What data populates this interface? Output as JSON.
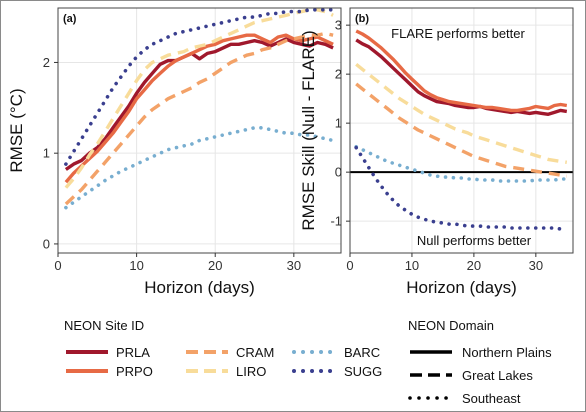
{
  "chart_data": [
    {
      "panel_label": "(a)",
      "type": "line",
      "xlabel": "Horizon (days)",
      "ylabel": "RMSE (°C)",
      "xlim": [
        0,
        36
      ],
      "ylim": [
        -0.1,
        2.6
      ],
      "xticks": [
        0,
        10,
        20,
        30
      ],
      "yticks": [
        0,
        1,
        2
      ],
      "grid": true,
      "series": [
        {
          "name": "PRLA",
          "color": "#a0182c",
          "dash": "solid",
          "x": [
            1,
            2,
            3,
            4,
            5,
            6,
            7,
            8,
            9,
            10,
            11,
            12,
            13,
            14,
            15,
            16,
            17,
            18,
            19,
            20,
            21,
            22,
            23,
            24,
            25,
            26,
            27,
            28,
            29,
            30,
            31,
            32,
            33,
            34,
            35
          ],
          "y": [
            0.82,
            0.88,
            0.92,
            1.0,
            1.06,
            1.16,
            1.28,
            1.4,
            1.52,
            1.66,
            1.78,
            1.88,
            1.98,
            2.02,
            2.02,
            2.06,
            2.1,
            2.04,
            2.1,
            2.12,
            2.16,
            2.2,
            2.2,
            2.22,
            2.24,
            2.22,
            2.18,
            2.22,
            2.26,
            2.22,
            2.2,
            2.18,
            2.22,
            2.2,
            2.16
          ]
        },
        {
          "name": "PRPO",
          "color": "#e76a45",
          "dash": "solid",
          "x": [
            1,
            2,
            3,
            4,
            5,
            6,
            7,
            8,
            9,
            10,
            11,
            12,
            13,
            14,
            15,
            16,
            17,
            18,
            19,
            20,
            21,
            22,
            23,
            24,
            25,
            26,
            27,
            28,
            29,
            30,
            31,
            32,
            33,
            34,
            35
          ],
          "y": [
            0.68,
            0.78,
            0.86,
            0.94,
            1.02,
            1.12,
            1.22,
            1.34,
            1.46,
            1.6,
            1.7,
            1.8,
            1.88,
            1.96,
            2.02,
            2.06,
            2.1,
            2.14,
            2.18,
            2.2,
            2.24,
            2.26,
            2.28,
            2.3,
            2.3,
            2.26,
            2.22,
            2.28,
            2.3,
            2.26,
            2.24,
            2.26,
            2.28,
            2.24,
            2.2
          ]
        },
        {
          "name": "CRAM",
          "color": "#f3a268",
          "dash": "dashed",
          "x": [
            1,
            2,
            3,
            4,
            5,
            6,
            7,
            8,
            9,
            10,
            11,
            12,
            13,
            14,
            15,
            16,
            17,
            18,
            19,
            20,
            21,
            22,
            23,
            24,
            25,
            26,
            27,
            28,
            29,
            30,
            31,
            32,
            33,
            34,
            35
          ],
          "y": [
            0.44,
            0.52,
            0.6,
            0.7,
            0.8,
            0.9,
            1.0,
            1.1,
            1.2,
            1.3,
            1.4,
            1.48,
            1.54,
            1.6,
            1.64,
            1.68,
            1.72,
            1.78,
            1.82,
            1.88,
            1.94,
            2.0,
            2.04,
            2.08,
            2.1,
            2.14,
            2.16,
            2.2,
            2.24,
            2.26,
            2.28,
            2.3,
            2.3,
            2.32,
            2.3
          ]
        },
        {
          "name": "LIRO",
          "color": "#f8dc9a",
          "dash": "dashed",
          "x": [
            1,
            2,
            3,
            4,
            5,
            6,
            7,
            8,
            9,
            10,
            11,
            12,
            13,
            14,
            15,
            16,
            17,
            18,
            19,
            20,
            21,
            22,
            23,
            24,
            25,
            26,
            27,
            28,
            29,
            30,
            31,
            32,
            33,
            34,
            35
          ],
          "y": [
            0.62,
            0.72,
            0.84,
            0.98,
            1.1,
            1.24,
            1.38,
            1.52,
            1.66,
            1.8,
            1.92,
            2.0,
            2.04,
            2.08,
            2.1,
            2.12,
            2.16,
            2.18,
            2.2,
            2.24,
            2.28,
            2.32,
            2.36,
            2.4,
            2.44,
            2.46,
            2.48,
            2.5,
            2.52,
            2.54,
            2.56,
            2.58,
            2.58,
            2.56,
            2.52
          ]
        },
        {
          "name": "BARC",
          "color": "#78aed0",
          "dash": "dotted",
          "x": [
            1,
            2,
            3,
            4,
            5,
            6,
            7,
            8,
            9,
            10,
            11,
            12,
            13,
            14,
            15,
            16,
            17,
            18,
            19,
            20,
            21,
            22,
            23,
            24,
            25,
            26,
            27,
            28,
            29,
            30,
            31,
            32,
            33,
            34,
            35
          ],
          "y": [
            0.4,
            0.46,
            0.52,
            0.58,
            0.64,
            0.7,
            0.75,
            0.8,
            0.84,
            0.88,
            0.92,
            0.96,
            1.0,
            1.04,
            1.06,
            1.08,
            1.1,
            1.14,
            1.16,
            1.18,
            1.2,
            1.22,
            1.24,
            1.26,
            1.28,
            1.28,
            1.26,
            1.24,
            1.22,
            1.22,
            1.2,
            1.2,
            1.18,
            1.16,
            1.14
          ]
        },
        {
          "name": "SUGG",
          "color": "#3a3f8f",
          "dash": "dotted",
          "x": [
            1,
            2,
            3,
            4,
            5,
            6,
            7,
            8,
            9,
            10,
            11,
            12,
            13,
            14,
            15,
            16,
            17,
            18,
            19,
            20,
            21,
            22,
            23,
            24,
            25,
            26,
            27,
            28,
            29,
            30,
            31,
            32,
            33,
            34,
            35
          ],
          "y": [
            0.88,
            1.02,
            1.16,
            1.3,
            1.44,
            1.58,
            1.72,
            1.84,
            1.96,
            2.06,
            2.14,
            2.2,
            2.24,
            2.28,
            2.32,
            2.34,
            2.36,
            2.38,
            2.4,
            2.42,
            2.44,
            2.46,
            2.48,
            2.5,
            2.5,
            2.52,
            2.54,
            2.54,
            2.56,
            2.56,
            2.56,
            2.58,
            2.58,
            2.58,
            2.58
          ]
        }
      ]
    },
    {
      "panel_label": "(b)",
      "type": "line",
      "xlabel": "Horizon (days)",
      "ylabel": "RMSE Skill (Null - FLARE)",
      "xlim": [
        0,
        36
      ],
      "ylim": [
        -1.65,
        3.35
      ],
      "xticks": [
        0,
        10,
        20,
        30
      ],
      "yticks": [
        -1,
        0,
        1,
        2,
        3
      ],
      "grid": true,
      "zero_line": true,
      "annotations": [
        "FLARE performs better",
        "Null performs better"
      ],
      "series": [
        {
          "name": "PRLA",
          "color": "#a0182c",
          "dash": "solid",
          "x": [
            1,
            2,
            3,
            4,
            5,
            6,
            7,
            8,
            9,
            10,
            11,
            12,
            13,
            14,
            15,
            16,
            17,
            18,
            19,
            20,
            21,
            22,
            23,
            24,
            25,
            26,
            27,
            28,
            29,
            30,
            31,
            32,
            33,
            34,
            35
          ],
          "y": [
            2.7,
            2.62,
            2.56,
            2.46,
            2.36,
            2.24,
            2.12,
            2.0,
            1.88,
            1.76,
            1.64,
            1.56,
            1.5,
            1.44,
            1.42,
            1.4,
            1.36,
            1.34,
            1.32,
            1.32,
            1.34,
            1.3,
            1.28,
            1.26,
            1.24,
            1.22,
            1.24,
            1.22,
            1.2,
            1.22,
            1.2,
            1.18,
            1.22,
            1.26,
            1.24
          ]
        },
        {
          "name": "PRPO",
          "color": "#e76a45",
          "dash": "solid",
          "x": [
            1,
            2,
            3,
            4,
            5,
            6,
            7,
            8,
            9,
            10,
            11,
            12,
            13,
            14,
            15,
            16,
            17,
            18,
            19,
            20,
            21,
            22,
            23,
            24,
            25,
            26,
            27,
            28,
            29,
            30,
            31,
            32,
            33,
            34,
            35
          ],
          "y": [
            2.88,
            2.82,
            2.74,
            2.64,
            2.54,
            2.42,
            2.3,
            2.16,
            2.02,
            1.9,
            1.78,
            1.66,
            1.58,
            1.52,
            1.48,
            1.44,
            1.42,
            1.4,
            1.38,
            1.36,
            1.34,
            1.32,
            1.32,
            1.3,
            1.28,
            1.26,
            1.26,
            1.28,
            1.3,
            1.34,
            1.32,
            1.3,
            1.36,
            1.38,
            1.36
          ]
        },
        {
          "name": "CRAM",
          "color": "#f3a268",
          "dash": "dashed",
          "x": [
            1,
            2,
            3,
            4,
            5,
            6,
            7,
            8,
            9,
            10,
            11,
            12,
            13,
            14,
            15,
            16,
            17,
            18,
            19,
            20,
            21,
            22,
            23,
            24,
            25,
            26,
            27,
            28,
            29,
            30,
            31,
            32,
            33,
            34,
            35
          ],
          "y": [
            1.8,
            1.7,
            1.6,
            1.5,
            1.4,
            1.3,
            1.2,
            1.1,
            1.02,
            0.94,
            0.86,
            0.8,
            0.74,
            0.68,
            0.62,
            0.56,
            0.5,
            0.44,
            0.38,
            0.32,
            0.28,
            0.24,
            0.2,
            0.16,
            0.12,
            0.1,
            0.08,
            0.06,
            0.04,
            0.02,
            0.0,
            -0.02,
            -0.04,
            -0.06,
            -0.08
          ]
        },
        {
          "name": "LIRO",
          "color": "#f8dc9a",
          "dash": "dashed",
          "x": [
            1,
            2,
            3,
            4,
            5,
            6,
            7,
            8,
            9,
            10,
            11,
            12,
            13,
            14,
            15,
            16,
            17,
            18,
            19,
            20,
            21,
            22,
            23,
            24,
            25,
            26,
            27,
            28,
            29,
            30,
            31,
            32,
            33,
            34,
            35
          ],
          "y": [
            2.2,
            2.1,
            2.0,
            1.9,
            1.8,
            1.7,
            1.6,
            1.5,
            1.42,
            1.34,
            1.26,
            1.18,
            1.12,
            1.06,
            1.0,
            0.94,
            0.88,
            0.84,
            0.8,
            0.74,
            0.7,
            0.66,
            0.62,
            0.58,
            0.54,
            0.5,
            0.46,
            0.42,
            0.38,
            0.34,
            0.3,
            0.26,
            0.24,
            0.22,
            0.2
          ]
        },
        {
          "name": "BARC",
          "color": "#78aed0",
          "dash": "dotted",
          "x": [
            1,
            2,
            3,
            4,
            5,
            6,
            7,
            8,
            9,
            10,
            11,
            12,
            13,
            14,
            15,
            16,
            17,
            18,
            19,
            20,
            21,
            22,
            23,
            24,
            25,
            26,
            27,
            28,
            29,
            30,
            31,
            32,
            33,
            34,
            35
          ],
          "y": [
            0.52,
            0.46,
            0.4,
            0.34,
            0.28,
            0.22,
            0.18,
            0.14,
            0.1,
            0.06,
            0.02,
            -0.02,
            -0.06,
            -0.08,
            -0.1,
            -0.1,
            -0.12,
            -0.12,
            -0.14,
            -0.14,
            -0.16,
            -0.16,
            -0.16,
            -0.18,
            -0.18,
            -0.18,
            -0.18,
            -0.18,
            -0.18,
            -0.16,
            -0.16,
            -0.16,
            -0.16,
            -0.14,
            -0.14
          ]
        },
        {
          "name": "SUGG",
          "color": "#3a3f8f",
          "dash": "dotted",
          "x": [
            1,
            2,
            3,
            4,
            5,
            6,
            7,
            8,
            9,
            10,
            11,
            12,
            13,
            14,
            15,
            16,
            17,
            18,
            19,
            20,
            21,
            22,
            23,
            24,
            25,
            26,
            27,
            28,
            29,
            30,
            31,
            32,
            33,
            34,
            35
          ],
          "y": [
            0.5,
            0.3,
            0.1,
            -0.1,
            -0.28,
            -0.44,
            -0.58,
            -0.7,
            -0.78,
            -0.86,
            -0.92,
            -0.96,
            -1.0,
            -1.02,
            -1.04,
            -1.06,
            -1.06,
            -1.08,
            -1.1,
            -1.1,
            -1.1,
            -1.12,
            -1.12,
            -1.12,
            -1.12,
            -1.14,
            -1.14,
            -1.14,
            -1.14,
            -1.14,
            -1.14,
            -1.14,
            -1.14,
            -1.16,
            -1.18
          ]
        }
      ]
    }
  ],
  "legend": {
    "site_title": "NEON Site ID",
    "sites": [
      {
        "name": "PRLA",
        "color": "#a0182c",
        "dash": "solid"
      },
      {
        "name": "CRAM",
        "color": "#f3a268",
        "dash": "dashed"
      },
      {
        "name": "BARC",
        "color": "#78aed0",
        "dash": "dotted"
      },
      {
        "name": "PRPO",
        "color": "#e76a45",
        "dash": "solid"
      },
      {
        "name": "LIRO",
        "color": "#f8dc9a",
        "dash": "dashed"
      },
      {
        "name": "SUGG",
        "color": "#3a3f8f",
        "dash": "dotted"
      }
    ],
    "domain_title": "NEON Domain",
    "domains": [
      {
        "name": "Northern Plains",
        "dash": "solid"
      },
      {
        "name": "Great Lakes",
        "dash": "dashed"
      },
      {
        "name": "Southeast",
        "dash": "dotted"
      }
    ]
  }
}
